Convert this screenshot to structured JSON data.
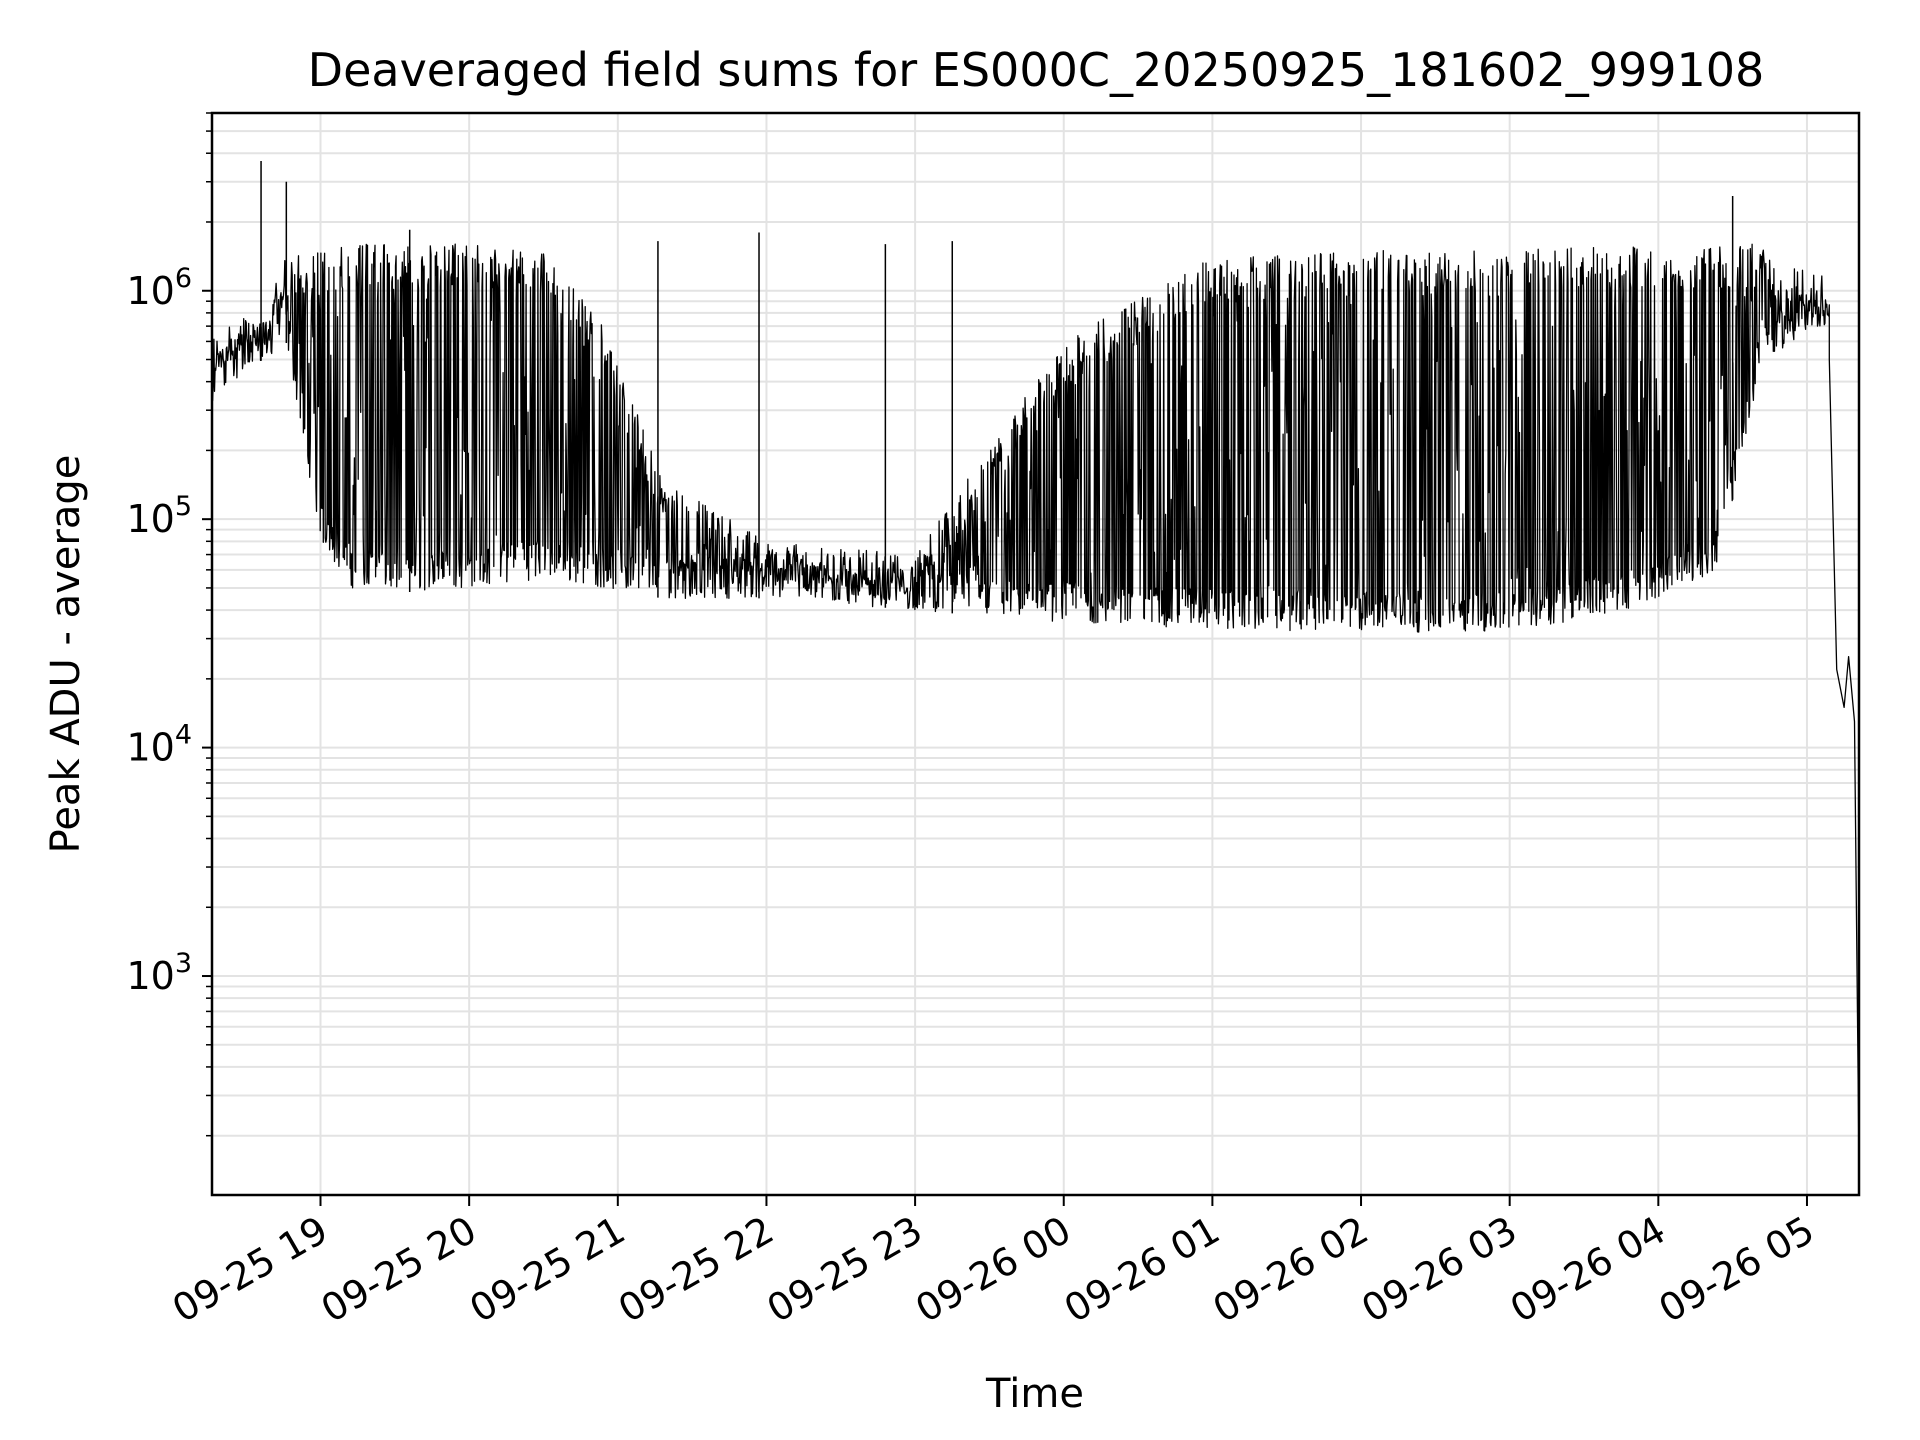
{
  "chart_data": {
    "type": "line",
    "title": "Deaveraged field sums for ES000C_20250925_181602_999108",
    "xlabel": "Time",
    "ylabel": "Peak ADU - average",
    "yscale": "log",
    "ylim": [
      110,
      6000000
    ],
    "xlim_hours": [
      -0.73,
      10.35
    ],
    "grid": true,
    "line_color": "#000000",
    "x_ticks": [
      {
        "label": "09-25 19",
        "hour": 0
      },
      {
        "label": "09-25 20",
        "hour": 1
      },
      {
        "label": "09-25 21",
        "hour": 2
      },
      {
        "label": "09-25 22",
        "hour": 3
      },
      {
        "label": "09-25 23",
        "hour": 4
      },
      {
        "label": "09-26 00",
        "hour": 5
      },
      {
        "label": "09-26 01",
        "hour": 6
      },
      {
        "label": "09-26 02",
        "hour": 7
      },
      {
        "label": "09-26 03",
        "hour": 8
      },
      {
        "label": "09-26 04",
        "hour": 9
      },
      {
        "label": "09-26 05",
        "hour": 10
      }
    ],
    "y_ticks": [
      {
        "base": "10",
        "exp": "3",
        "value": 1000
      },
      {
        "base": "10",
        "exp": "4",
        "value": 10000
      },
      {
        "base": "10",
        "exp": "5",
        "value": 100000
      },
      {
        "base": "10",
        "exp": "6",
        "value": 1000000
      }
    ],
    "series": [
      {
        "name": "field sums",
        "envelope": [
          {
            "hour": -0.73,
            "low": 420000,
            "high": 520000
          },
          {
            "hour": -0.5,
            "low": 520000,
            "high": 700000
          },
          {
            "hour": -0.35,
            "low": 480000,
            "high": 900000
          },
          {
            "hour": -0.25,
            "low": 700000,
            "high": 1400000
          },
          {
            "hour": -0.15,
            "low": 300000,
            "high": 1500000
          },
          {
            "hour": 0.0,
            "low": 80000,
            "high": 1500000
          },
          {
            "hour": 0.2,
            "low": 50000,
            "high": 1600000
          },
          {
            "hour": 0.6,
            "low": 48000,
            "high": 1600000
          },
          {
            "hour": 1.0,
            "low": 50000,
            "high": 1600000
          },
          {
            "hour": 1.5,
            "low": 55000,
            "high": 1500000
          },
          {
            "hour": 1.9,
            "low": 50000,
            "high": 700000
          },
          {
            "hour": 2.3,
            "low": 45000,
            "high": 150000
          },
          {
            "hour": 3.0,
            "low": 45000,
            "high": 80000
          },
          {
            "hour": 4.0,
            "low": 40000,
            "high": 70000
          },
          {
            "hour": 5.0,
            "low": 35000,
            "high": 600000
          },
          {
            "hour": 6.0,
            "low": 33000,
            "high": 1400000
          },
          {
            "hour": 7.0,
            "low": 32000,
            "high": 1500000
          },
          {
            "hour": 8.0,
            "low": 32000,
            "high": 1500000
          },
          {
            "hour": 8.8,
            "low": 40000,
            "high": 1600000
          },
          {
            "hour": 9.4,
            "low": 60000,
            "high": 1600000
          },
          {
            "hour": 9.7,
            "low": 500000,
            "high": 1600000
          },
          {
            "hour": 10.1,
            "low": 700000,
            "high": 1200000
          }
        ],
        "spikes": [
          {
            "hour": -0.4,
            "value": 3700000
          },
          {
            "hour": -0.23,
            "value": 3000000
          },
          {
            "hour": 0.6,
            "value": 1850000
          },
          {
            "hour": 2.27,
            "value": 1650000
          },
          {
            "hour": 2.95,
            "value": 1800000
          },
          {
            "hour": 3.8,
            "value": 1600000
          },
          {
            "hour": 4.25,
            "value": 1650000
          },
          {
            "hour": 9.5,
            "value": 2600000
          }
        ],
        "tail": [
          {
            "hour": 10.15,
            "value": 500000
          },
          {
            "hour": 10.2,
            "value": 22000
          },
          {
            "hour": 10.25,
            "value": 15000
          },
          {
            "hour": 10.28,
            "value": 25000
          },
          {
            "hour": 10.32,
            "value": 13000
          },
          {
            "hour": 10.35,
            "value": 150
          }
        ]
      }
    ]
  }
}
